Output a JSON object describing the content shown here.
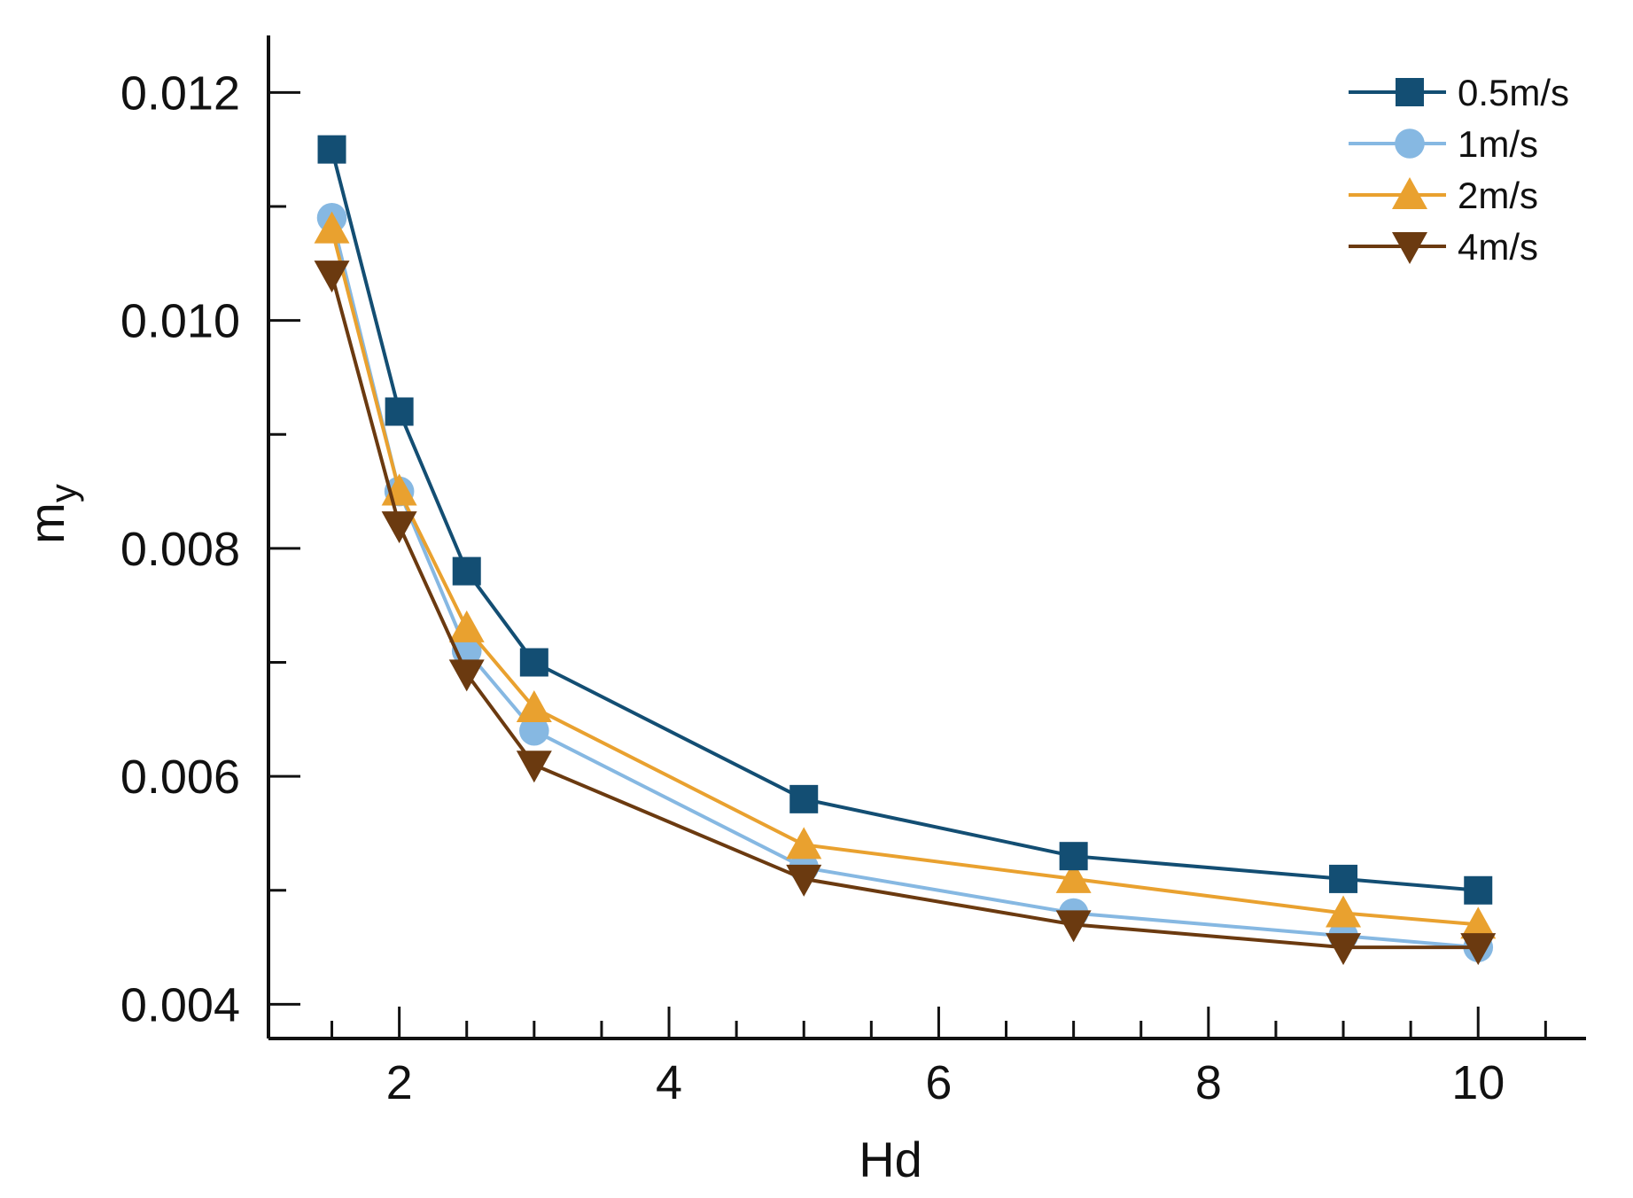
{
  "chart_data": {
    "type": "line",
    "title": "",
    "xlabel": "Hd",
    "ylabel": "m",
    "ylabel_subscript": "y",
    "xlim": [
      1.03,
      10.8
    ],
    "ylim": [
      0.0037,
      0.0125
    ],
    "x_ticks": [
      2,
      4,
      6,
      8,
      10
    ],
    "x_tick_labels": [
      "2",
      "4",
      "6",
      "8",
      "10"
    ],
    "y_ticks": [
      0.004,
      0.006,
      0.008,
      0.01,
      0.012
    ],
    "y_tick_labels": [
      "0.004",
      "0.006",
      "0.008",
      "0.010",
      "0.012"
    ],
    "grid": false,
    "legend_position": "top-right",
    "x": [
      1.5,
      2,
      2.5,
      3,
      5,
      7,
      9,
      10
    ],
    "series": [
      {
        "name": "0.5m/s",
        "color": "#134e73",
        "marker": "square",
        "values": [
          0.0115,
          0.0092,
          0.0078,
          0.007,
          0.0058,
          0.0053,
          0.0051,
          0.005
        ]
      },
      {
        "name": "1m/s",
        "color": "#86b8e2",
        "marker": "circle",
        "values": [
          0.0109,
          0.0085,
          0.0071,
          0.0064,
          0.0052,
          0.0048,
          0.0046,
          0.0045
        ]
      },
      {
        "name": "2m/s",
        "color": "#e9a12f",
        "marker": "triangle-up",
        "values": [
          0.0108,
          0.0085,
          0.0073,
          0.0066,
          0.0054,
          0.0051,
          0.0048,
          0.0047
        ]
      },
      {
        "name": "4m/s",
        "color": "#6b3a10",
        "marker": "triangle-down",
        "values": [
          0.0104,
          0.0082,
          0.0069,
          0.0061,
          0.0051,
          0.0047,
          0.0045,
          0.0045
        ]
      }
    ]
  }
}
